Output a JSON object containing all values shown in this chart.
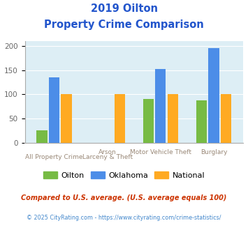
{
  "title_line1": "2019 Oilton",
  "title_line2": "Property Crime Comparison",
  "cat_labels_top": [
    "",
    "Arson",
    "Motor Vehicle Theft",
    "Burglary"
  ],
  "cat_labels_bot": [
    "All Property Crime",
    "Larceny & Theft",
    "",
    ""
  ],
  "oilton": [
    25,
    0,
    90,
    87
  ],
  "oklahoma": [
    135,
    0,
    153,
    196
  ],
  "national": [
    100,
    100,
    100,
    100
  ],
  "oilton_color": "#77bb44",
  "oklahoma_color": "#4c8de8",
  "national_color": "#ffaa22",
  "bg_color": "#ddeef5",
  "title_color": "#2255cc",
  "axis_label_color": "#998877",
  "yticks": [
    0,
    50,
    100,
    150,
    200
  ],
  "footnote1": "Compared to U.S. average. (U.S. average equals 100)",
  "footnote2": "© 2025 CityRating.com - https://www.cityrating.com/crime-statistics/",
  "footnote1_color": "#cc3300",
  "footnote2_color": "#4488cc",
  "legend_labels": [
    "Oilton",
    "Oklahoma",
    "National"
  ]
}
